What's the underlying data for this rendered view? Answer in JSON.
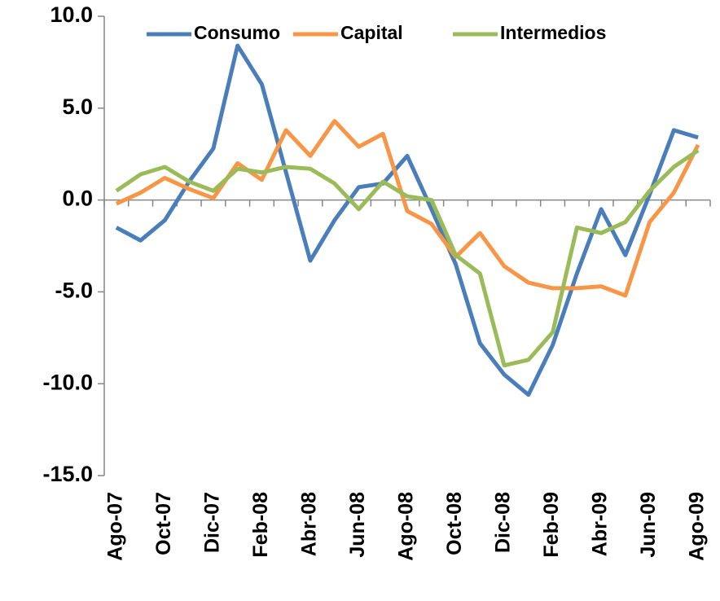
{
  "chart_data": {
    "type": "line",
    "categories": [
      "Ago-07",
      null,
      "Oct-07",
      null,
      "Dic-07",
      null,
      "Feb-08",
      null,
      "Abr-08",
      null,
      "Jun-08",
      null,
      "Ago-08",
      null,
      "Oct-08",
      null,
      "Dic-08",
      null,
      "Feb-09",
      null,
      "Abr-09",
      null,
      "Jun-09",
      null,
      "Ago-09"
    ],
    "series": [
      {
        "name": "Consumo",
        "color": "#4a7ebb",
        "values": [
          -1.5,
          -2.2,
          -1.1,
          1.0,
          2.8,
          8.4,
          6.3,
          1.5,
          -3.3,
          -1.1,
          0.7,
          0.9,
          2.4,
          -0.5,
          -3.5,
          -7.8,
          -9.5,
          -10.6,
          -7.9,
          -4.0,
          -0.5,
          -3.0,
          0.3,
          3.8,
          3.4
        ]
      },
      {
        "name": "Capital",
        "color": "#f79646",
        "values": [
          -0.2,
          0.4,
          1.2,
          0.6,
          0.1,
          2.0,
          1.1,
          3.8,
          2.4,
          4.3,
          2.9,
          3.6,
          -0.6,
          -1.3,
          -3.1,
          -1.8,
          -3.6,
          -4.5,
          -4.8,
          -4.8,
          -4.7,
          -5.2,
          -1.2,
          0.4,
          3.0
        ]
      },
      {
        "name": "Intermedios",
        "color": "#9bbb59",
        "values": [
          0.5,
          1.4,
          1.8,
          1.0,
          0.5,
          1.7,
          1.5,
          1.8,
          1.7,
          0.9,
          -0.5,
          1.0,
          0.2,
          0.0,
          -3.0,
          -4.0,
          -9.0,
          -8.7,
          -7.2,
          -1.5,
          -1.8,
          -1.2,
          0.5,
          1.8,
          2.7
        ]
      }
    ],
    "ylim": [
      -15,
      10
    ],
    "yticks": [
      {
        "value": -15,
        "label": "-15.0"
      },
      {
        "value": -10,
        "label": "-10.0"
      },
      {
        "value": -5,
        "label": "-5.0"
      },
      {
        "value": 0,
        "label": "0.0"
      },
      {
        "value": 5,
        "label": "5.0"
      },
      {
        "value": 10,
        "label": "10.0"
      }
    ],
    "legend": "top"
  }
}
